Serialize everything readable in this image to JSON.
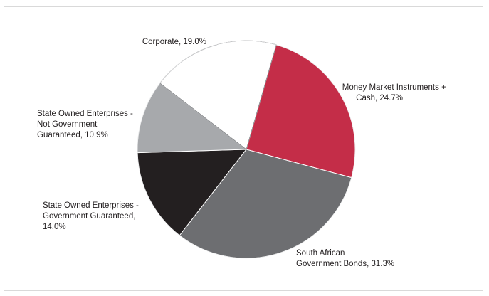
{
  "chart_data": {
    "type": "pie",
    "slices": [
      {
        "key": "mm",
        "lines": [
          "Money Market Instruments +",
          "Cash, 24.7%"
        ],
        "value": 24.7,
        "color": "#c42d48"
      },
      {
        "key": "sagb",
        "lines": [
          "South African",
          "Government Bonds, 31.3%"
        ],
        "value": 31.3,
        "color": "#6d6e71"
      },
      {
        "key": "soe-gg",
        "lines": [
          "State Owned Enterprises -",
          "Government Guaranteed,",
          "14.0%"
        ],
        "value": 14.0,
        "color": "#231f20"
      },
      {
        "key": "soe-ngg",
        "lines": [
          "State Owned Enterprises -",
          "Not Government",
          "Guaranteed, 10.9%"
        ],
        "value": 10.9,
        "color": "#a7a9ac"
      },
      {
        "key": "corp",
        "lines": [
          "Corporate, 19.0%"
        ],
        "value": 19.0,
        "color": "#ffffff"
      }
    ],
    "start_angle_deg": 16,
    "direction": "clockwise",
    "slice_border_color": "#808285"
  }
}
